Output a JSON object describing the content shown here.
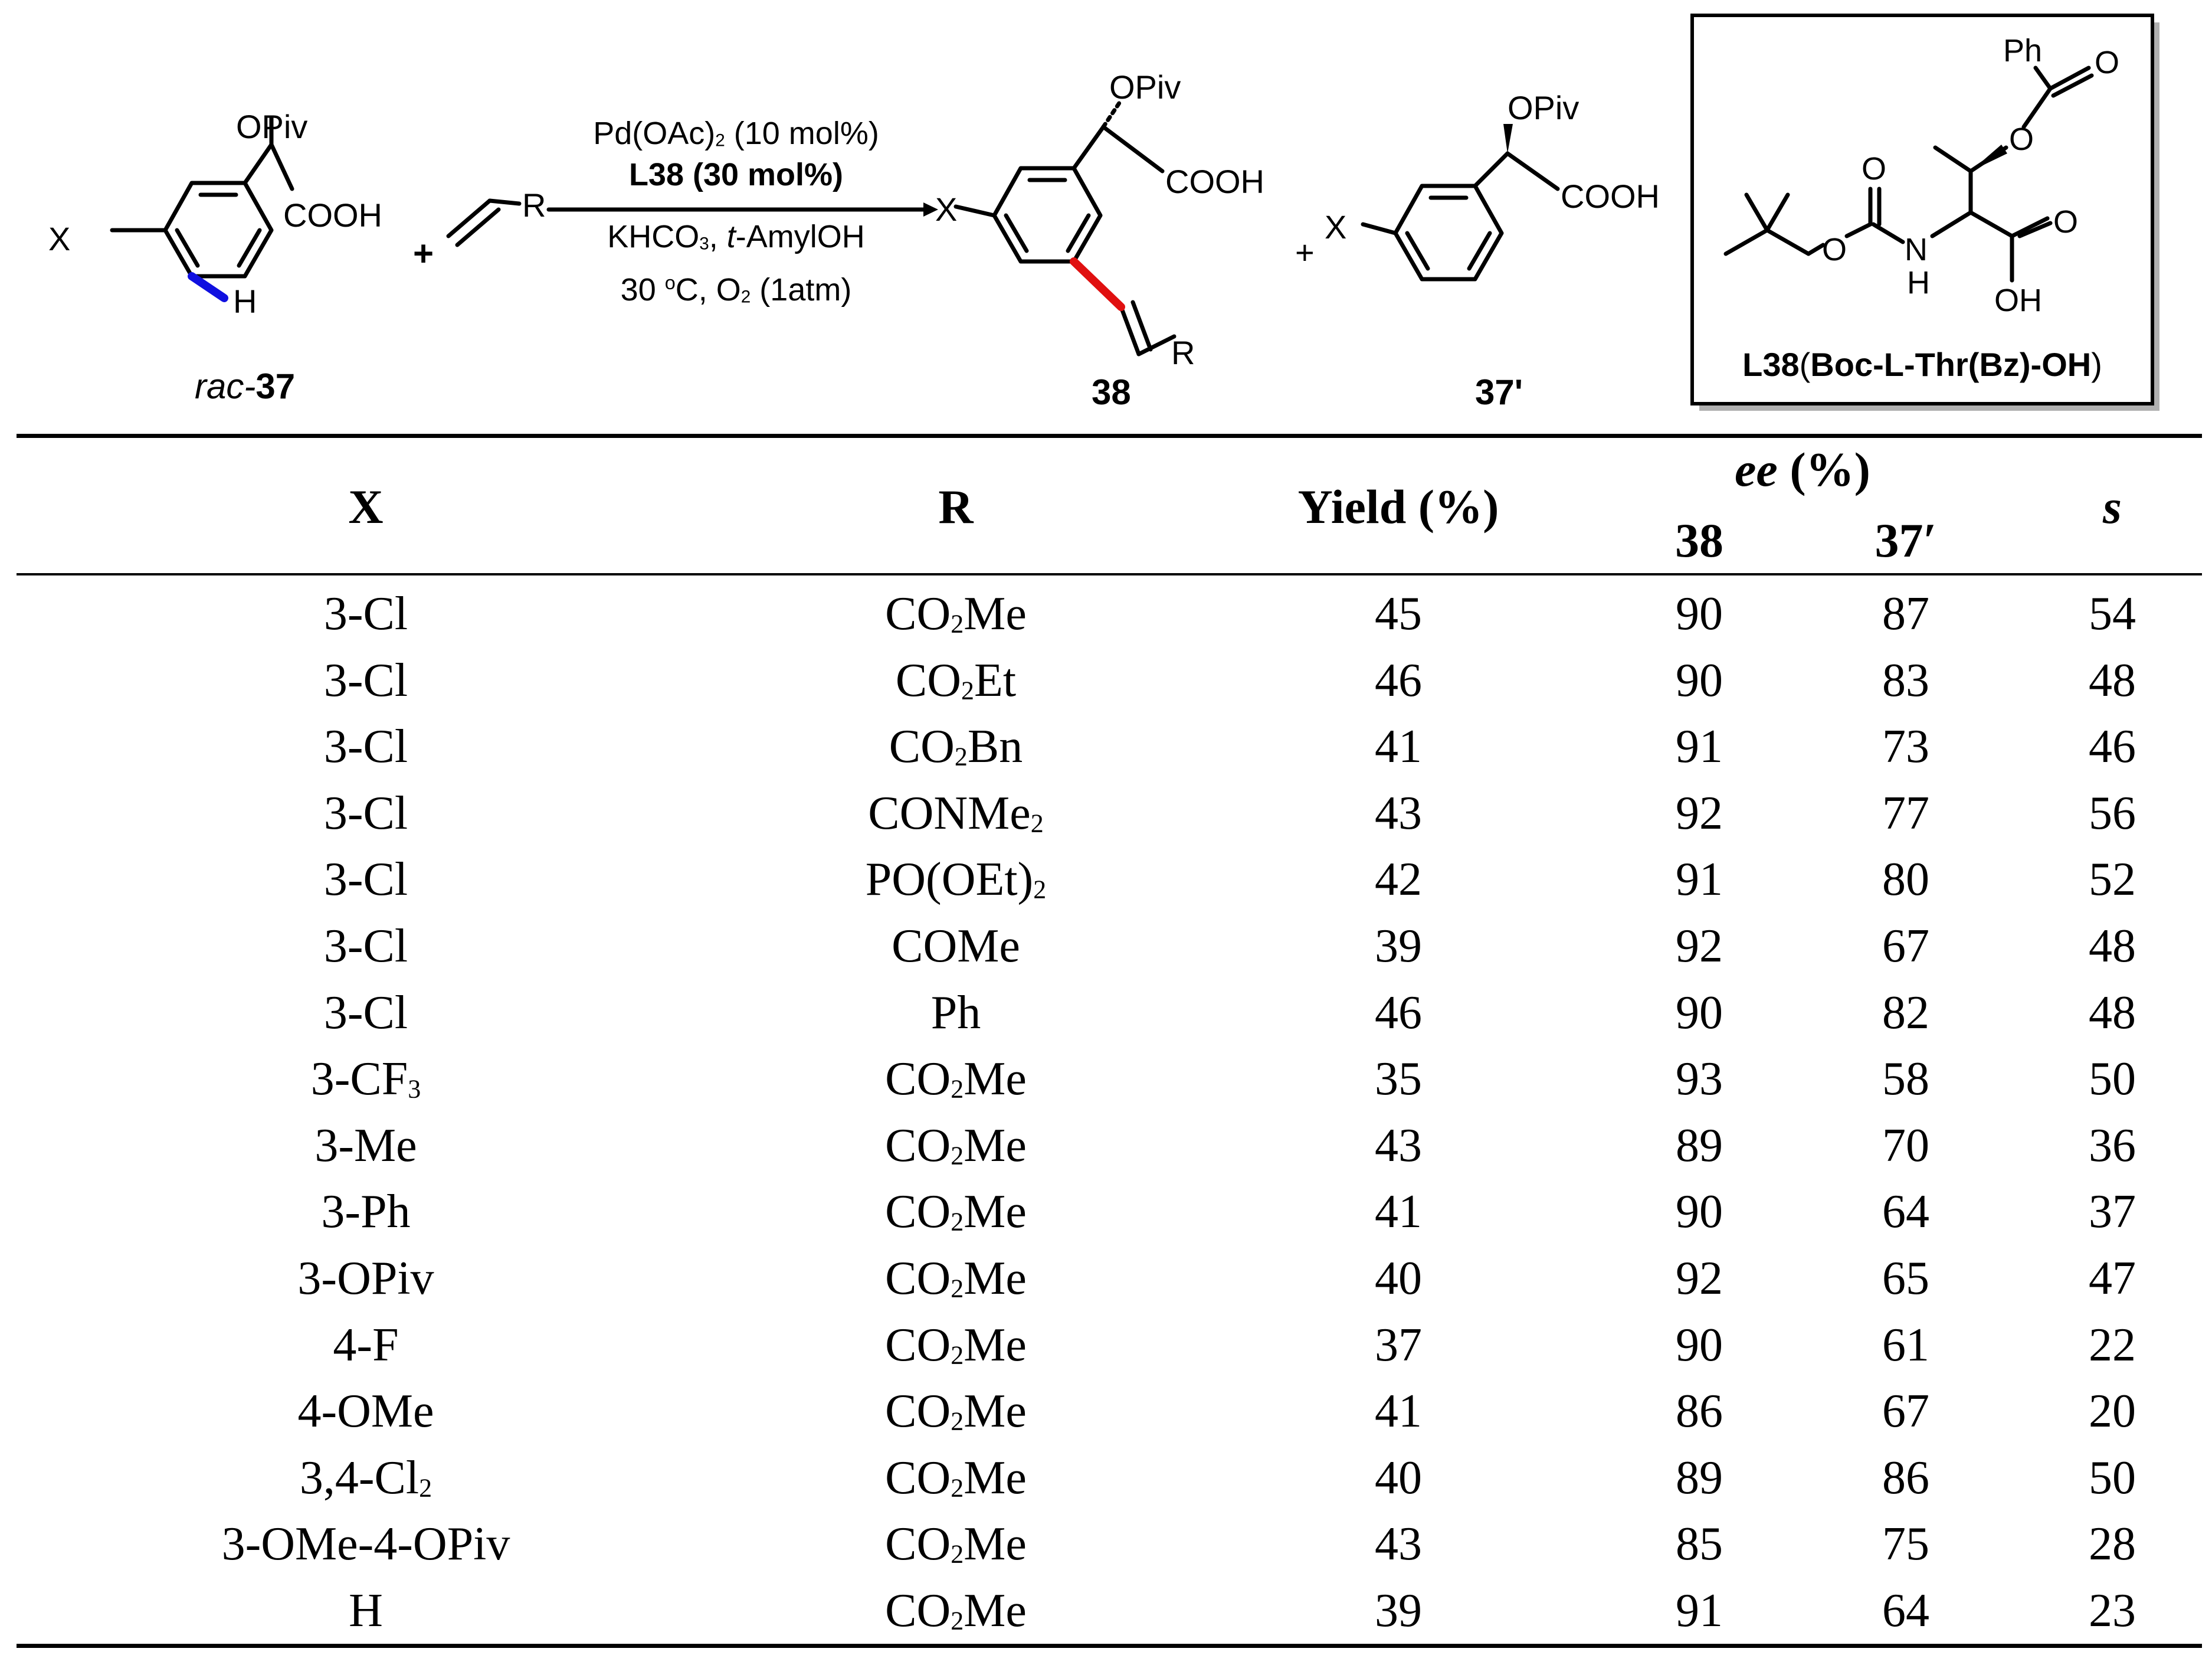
{
  "scheme": {
    "reactant_label_prefix": "rac-",
    "reactant_label_number": "37",
    "reactant_opiv": "OPiv",
    "reactant_cooh": "COOH",
    "reactant_x": "X",
    "reactant_h": "H",
    "plus": "+",
    "alkene_r": "R",
    "cond_line1": "Pd(OAc)2 (10 mol%)",
    "cond_line2": "L38 (30 mol%)",
    "cond_line3": "KHCO3, t-AmylOH",
    "cond_line4": "30 oC, O2 (1atm)",
    "product_label": "38",
    "product_opiv": "OPiv",
    "product_cooh": "COOH",
    "product_x": "X",
    "product_r": "R",
    "plus2": "+",
    "recovered_label": "37'",
    "recovered_opiv": "OPiv",
    "recovered_cooh": "COOH",
    "recovered_x": "X",
    "ligand_ph": "Ph",
    "ligand_o1": "O",
    "ligand_o2": "O",
    "ligand_o3": "O",
    "ligand_o4": "O",
    "ligand_o5": "O",
    "ligand_n": "N",
    "ligand_h": "H",
    "ligand_oh": "OH",
    "ligand_label_bold": "L38",
    "ligand_label_rest": "Boc-L-Thr(Bz)-OH",
    "colors": {
      "blue_bond": "#1010e0",
      "red_bond": "#e01010",
      "box_shadow": "#b0b0b0"
    }
  },
  "table": {
    "headers": {
      "x": "X",
      "r": "R",
      "yield": "Yield (%)",
      "ee": "ee",
      "ee_unit": "(%)",
      "ee_38": "38",
      "ee_37": "37′",
      "s": "s"
    },
    "rows": [
      {
        "x": "3-Cl",
        "r": "CO2Me",
        "yield": "45",
        "ee38": "90",
        "ee37": "87",
        "s": "54"
      },
      {
        "x": "3-Cl",
        "r": "CO2Et",
        "yield": "46",
        "ee38": "90",
        "ee37": "83",
        "s": "48"
      },
      {
        "x": "3-Cl",
        "r": "CO2Bn",
        "yield": "41",
        "ee38": "91",
        "ee37": "73",
        "s": "46"
      },
      {
        "x": "3-Cl",
        "r": "CONMe2",
        "yield": "43",
        "ee38": "92",
        "ee37": "77",
        "s": "56"
      },
      {
        "x": "3-Cl",
        "r": "PO(OEt)2",
        "yield": "42",
        "ee38": "91",
        "ee37": "80",
        "s": "52"
      },
      {
        "x": "3-Cl",
        "r": "COMe",
        "yield": "39",
        "ee38": "92",
        "ee37": "67",
        "s": "48"
      },
      {
        "x": "3-Cl",
        "r": "Ph",
        "yield": "46",
        "ee38": "90",
        "ee37": "82",
        "s": "48"
      },
      {
        "x": "3-CF3",
        "r": "CO2Me",
        "yield": "35",
        "ee38": "93",
        "ee37": "58",
        "s": "50"
      },
      {
        "x": "3-Me",
        "r": "CO2Me",
        "yield": "43",
        "ee38": "89",
        "ee37": "70",
        "s": "36"
      },
      {
        "x": "3-Ph",
        "r": "CO2Me",
        "yield": "41",
        "ee38": "90",
        "ee37": "64",
        "s": "37"
      },
      {
        "x": "3-OPiv",
        "r": "CO2Me",
        "yield": "40",
        "ee38": "92",
        "ee37": "65",
        "s": "47"
      },
      {
        "x": "4-F",
        "r": "CO2Me",
        "yield": "37",
        "ee38": "90",
        "ee37": "61",
        "s": "22"
      },
      {
        "x": "4-OMe",
        "r": "CO2Me",
        "yield": "41",
        "ee38": "86",
        "ee37": "67",
        "s": "20"
      },
      {
        "x": "3,4-Cl2",
        "r": "CO2Me",
        "yield": "40",
        "ee38": "89",
        "ee37": "86",
        "s": "50"
      },
      {
        "x": "3-OMe-4-OPiv",
        "r": "CO2Me",
        "yield": "43",
        "ee38": "85",
        "ee37": "75",
        "s": "28"
      },
      {
        "x": "H",
        "r": "CO2Me",
        "yield": "39",
        "ee38": "91",
        "ee37": "64",
        "s": "23"
      }
    ]
  }
}
